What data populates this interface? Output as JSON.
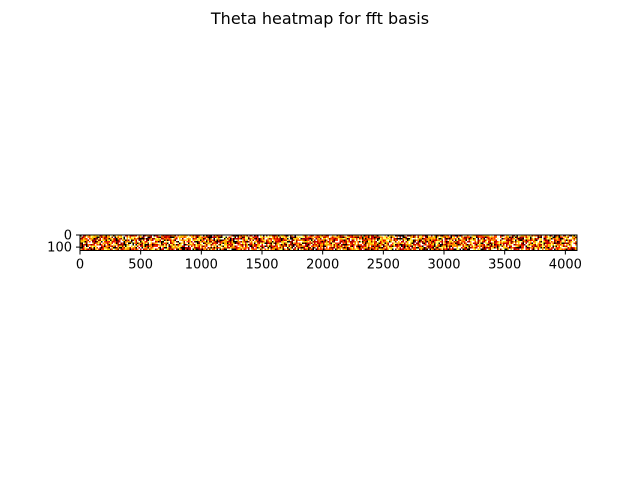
{
  "chart_data": {
    "type": "heatmap",
    "title": "Theta heatmap for fft basis",
    "xlabel": "",
    "ylabel": "",
    "xlim": [
      0,
      4096
    ],
    "ylim": [
      0,
      128
    ],
    "y_inverted": true,
    "rows": 128,
    "cols": 4096,
    "colormap": "hot",
    "colors": [
      "#000000",
      "#8b0000",
      "#cc0000",
      "#ff3300",
      "#ff8800",
      "#ffcc00",
      "#ffff66",
      "#ffffff"
    ],
    "x_ticks": [
      0,
      500,
      1000,
      1500,
      2000,
      2500,
      3000,
      3500,
      4000
    ],
    "x_tick_labels": [
      "0",
      "500",
      "1000",
      "1500",
      "2000",
      "2500",
      "3000",
      "3500",
      "4000"
    ],
    "y_ticks": [
      0,
      100
    ],
    "y_tick_labels": [
      "0",
      "100"
    ],
    "grid": false,
    "legend": "none"
  }
}
